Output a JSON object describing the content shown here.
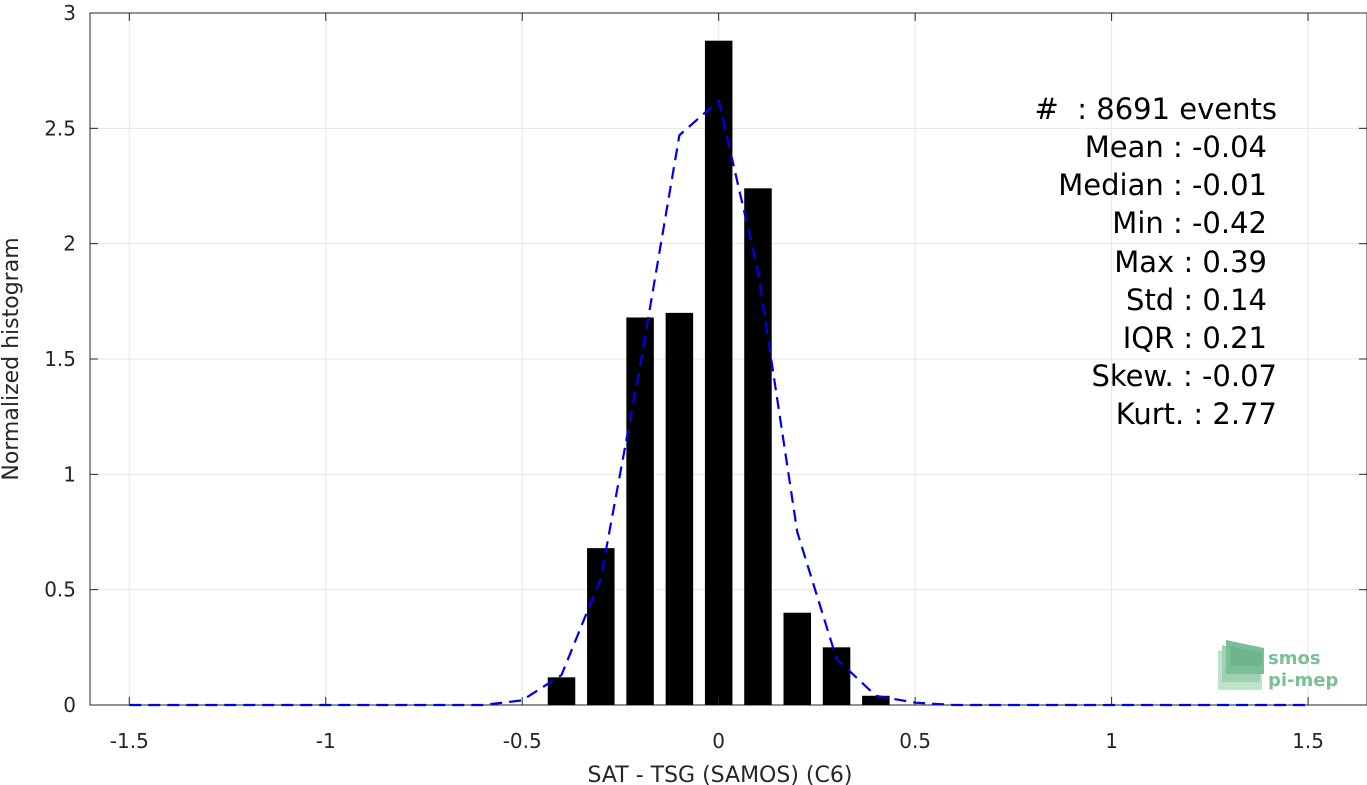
{
  "chart_data": {
    "type": "bar",
    "xlabel": "SAT - TSG (SAMOS) (C6)",
    "ylabel": "Normalized histogram",
    "xlim": [
      -1.6,
      1.65
    ],
    "ylim": [
      0,
      3
    ],
    "xticks": [
      -1.5,
      -1,
      -0.5,
      0,
      0.5,
      1,
      1.5
    ],
    "xtick_labels": [
      "-1.5",
      "-1",
      "-0.5",
      "0",
      "0.5",
      "1",
      "1.5"
    ],
    "yticks": [
      0,
      0.5,
      1,
      1.5,
      2,
      2.5,
      3
    ],
    "ytick_labels": [
      "0",
      "0.5",
      "1",
      "1.5",
      "2",
      "2.5",
      "3"
    ],
    "grid": true,
    "bar_color": "#000000",
    "bars": {
      "x": [
        -0.4,
        -0.3,
        -0.2,
        -0.1,
        0.0,
        0.1,
        0.2,
        0.3,
        0.4
      ],
      "values": [
        0.12,
        0.68,
        1.68,
        1.7,
        2.88,
        2.24,
        0.4,
        0.25,
        0.04
      ],
      "width": 0.07
    },
    "fit_line": {
      "style": "dashed",
      "color": "#0000ee",
      "x": [
        -1.5,
        -1.4,
        -1.3,
        -1.2,
        -1.1,
        -1.0,
        -0.9,
        -0.8,
        -0.7,
        -0.6,
        -0.5,
        -0.4,
        -0.3,
        -0.2,
        -0.1,
        0.0,
        0.1,
        0.2,
        0.3,
        0.4,
        0.5,
        0.6,
        0.7,
        0.8,
        0.9,
        1.0,
        1.1,
        1.2,
        1.3,
        1.4,
        1.5
      ],
      "y": [
        0,
        0,
        0,
        0,
        0,
        0,
        0,
        0,
        0,
        0,
        0.02,
        0.13,
        0.55,
        1.47,
        2.47,
        2.62,
        1.88,
        0.75,
        0.2,
        0.04,
        0.01,
        0,
        0,
        0,
        0,
        0,
        0,
        0,
        0,
        0,
        0
      ]
    }
  },
  "stats": {
    "lines": [
      "#  : 8691 events",
      "Mean : -0.04",
      "Median : -0.01",
      "Min : -0.42",
      "Max : 0.39",
      "Std : 0.14",
      "IQR : 0.21",
      "Skew. : -0.07",
      "Kurt. : 2.77"
    ]
  },
  "logo": {
    "line1": "smos",
    "line2": "pi-mep",
    "color": "#7bbf97"
  }
}
